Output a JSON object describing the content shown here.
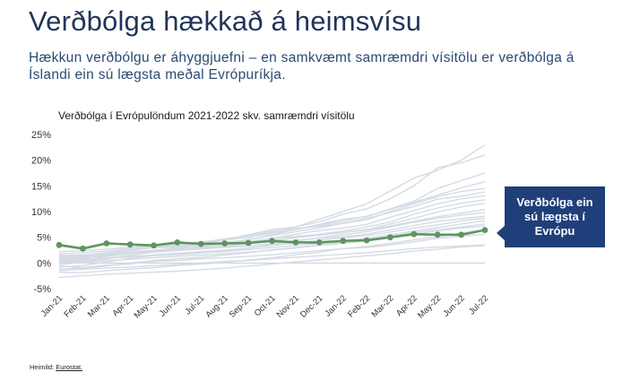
{
  "slide": {
    "title": "Verðbólga hækkað á heimsvísu",
    "subtitle": "Hækkun verðbólgu er áhyggjuefni – en samkvæmt samræmdri vísitölu er verðbólga á Íslandi ein sú lægsta meðal Evrópuríkja.",
    "callout": "Verðbólga ein sú lægsta í Evrópu",
    "source_label": "Heimild:",
    "source_value": "Eurostat."
  },
  "colors": {
    "highlight": "#5e9460",
    "background_series": "#d4dbe4",
    "zero_line": "#c8ccd2",
    "callout_bg": "#1f3f7a",
    "title": "#1f3559"
  },
  "chart_data": {
    "type": "line",
    "title": "Verðbólga í Evrópulöndum 2021-2022 skv. samræmdri vísitölu",
    "xlabel": "",
    "ylabel": "",
    "ylim": [
      -5,
      25
    ],
    "yticks": [
      -5,
      0,
      5,
      10,
      15,
      20,
      25
    ],
    "ytick_labels": [
      "-5%",
      "0%",
      "5%",
      "10%",
      "15%",
      "20%",
      "25%"
    ],
    "grid": false,
    "legend": "none",
    "categories": [
      "Jan-21",
      "Feb-21",
      "Mar-21",
      "Apr-21",
      "May-21",
      "Jun-21",
      "Jul-21",
      "Aug-21",
      "Sep-21",
      "Oct-21",
      "Nov-21",
      "Dec-21",
      "Jan-22",
      "Feb-22",
      "Mar-22",
      "Apr-22",
      "May-22",
      "Jun-22",
      "Jul-22"
    ],
    "highlight_series": [
      3.5,
      2.8,
      3.8,
      3.6,
      3.4,
      4.0,
      3.7,
      3.8,
      3.9,
      4.3,
      4.0,
      4.0,
      4.3,
      4.4,
      5.0,
      5.6,
      5.5,
      5.5,
      6.4
    ],
    "background_series": [
      [
        1.2,
        1.5,
        2.0,
        2.5,
        3.0,
        3.4,
        3.8,
        4.5,
        5.0,
        6.0,
        7.0,
        8.0,
        9.5,
        10.5,
        12.5,
        15.0,
        18.5,
        19.5,
        21.0
      ],
      [
        0.5,
        1.0,
        1.5,
        2.5,
        3.0,
        3.0,
        3.5,
        4.5,
        5.5,
        6.5,
        7.0,
        8.5,
        10.0,
        11.5,
        14.0,
        16.5,
        18.0,
        20.0,
        23.0
      ],
      [
        1.0,
        1.2,
        1.8,
        2.2,
        2.5,
        2.8,
        3.2,
        4.0,
        4.5,
        5.5,
        6.5,
        7.5,
        8.5,
        9.0,
        10.5,
        12.0,
        14.5,
        16.0,
        17.5
      ],
      [
        0.8,
        1.0,
        1.5,
        2.0,
        2.4,
        2.9,
        3.1,
        3.8,
        4.6,
        5.3,
        6.1,
        6.8,
        7.7,
        8.4,
        10.0,
        11.5,
        12.9,
        13.9,
        14.5
      ],
      [
        1.5,
        1.3,
        2.0,
        2.6,
        3.3,
        3.6,
        4.0,
        4.7,
        5.3,
        6.2,
        6.7,
        7.1,
        7.8,
        8.7,
        9.8,
        11.0,
        12.4,
        13.0,
        13.8
      ],
      [
        0.3,
        0.6,
        1.3,
        1.8,
        2.3,
        2.6,
        2.9,
        3.5,
        4.0,
        4.8,
        5.6,
        6.3,
        6.8,
        7.5,
        8.9,
        10.2,
        11.5,
        12.5,
        13.1
      ],
      [
        -0.4,
        0.2,
        0.8,
        1.5,
        2.1,
        2.4,
        2.8,
        3.2,
        3.9,
        4.4,
        5.0,
        5.6,
        6.2,
        7.0,
        8.0,
        9.5,
        10.7,
        11.6,
        12.3
      ],
      [
        0.9,
        1.1,
        1.4,
        1.9,
        2.2,
        2.5,
        2.7,
        3.1,
        3.7,
        4.2,
        4.9,
        5.4,
        5.9,
        6.5,
        7.6,
        8.7,
        9.9,
        10.9,
        11.6
      ],
      [
        1.8,
        2.0,
        2.3,
        2.8,
        3.1,
        3.2,
        3.6,
        3.9,
        4.2,
        4.8,
        5.2,
        5.5,
        6.0,
        6.4,
        7.2,
        8.1,
        9.0,
        9.7,
        10.4
      ],
      [
        0.1,
        0.4,
        0.9,
        1.2,
        1.6,
        1.9,
        2.2,
        2.5,
        2.9,
        3.6,
        4.2,
        4.9,
        5.5,
        6.1,
        7.0,
        7.9,
        8.7,
        9.3,
        9.8
      ],
      [
        1.4,
        1.6,
        1.7,
        2.1,
        2.4,
        2.6,
        2.8,
        3.0,
        3.3,
        3.8,
        4.4,
        4.8,
        5.1,
        5.6,
        6.4,
        7.3,
        8.1,
        8.6,
        9.1
      ],
      [
        -0.8,
        -0.5,
        0.2,
        0.9,
        1.4,
        1.6,
        1.9,
        2.4,
        2.9,
        3.4,
        3.9,
        4.4,
        4.9,
        5.3,
        6.0,
        6.8,
        7.4,
        8.2,
        8.7
      ],
      [
        0.6,
        0.8,
        1.0,
        1.3,
        1.5,
        1.7,
        2.0,
        2.2,
        2.6,
        3.0,
        3.4,
        3.8,
        4.3,
        4.8,
        5.5,
        6.2,
        6.9,
        7.6,
        8.2
      ],
      [
        -1.2,
        -1.0,
        -0.6,
        0.0,
        0.5,
        0.8,
        1.1,
        1.5,
        2.0,
        2.6,
        3.0,
        3.5,
        4.1,
        4.5,
        5.2,
        5.9,
        6.5,
        7.0,
        7.6
      ],
      [
        0.2,
        0.0,
        0.5,
        0.7,
        1.0,
        1.3,
        1.5,
        1.8,
        2.1,
        2.5,
        2.9,
        3.4,
        3.8,
        4.3,
        4.9,
        5.6,
        6.2,
        6.8,
        7.2
      ],
      [
        -1.8,
        -1.9,
        -1.5,
        -1.2,
        -0.9,
        -0.5,
        -0.2,
        0.1,
        0.6,
        1.0,
        1.6,
        2.1,
        2.8,
        3.2,
        3.8,
        4.5,
        5.1,
        5.8,
        6.5
      ],
      [
        -0.6,
        -0.9,
        -0.4,
        -0.2,
        0.3,
        0.5,
        0.8,
        1.0,
        1.3,
        1.6,
        2.0,
        2.4,
        2.8,
        3.0,
        3.5,
        4.1,
        4.8,
        5.2,
        5.6
      ],
      [
        -2.8,
        -2.5,
        -2.2,
        -2.0,
        -1.8,
        -1.6,
        -1.3,
        -1.0,
        -0.6,
        -0.2,
        0.2,
        0.6,
        1.0,
        1.4,
        1.8,
        2.3,
        2.7,
        3.1,
        3.4
      ],
      [
        -1.5,
        -1.2,
        -1.0,
        -0.8,
        -0.5,
        -0.3,
        0.0,
        0.3,
        0.5,
        0.8,
        1.1,
        1.4,
        1.7,
        2.0,
        2.4,
        2.8,
        3.1,
        3.3,
        3.5
      ],
      [
        2.2,
        2.4,
        2.7,
        3.0,
        3.4,
        3.8,
        4.1,
        4.5,
        5.0,
        5.8,
        6.5,
        7.3,
        8.2,
        9.1,
        10.4,
        11.8,
        13.2,
        14.6,
        15.8
      ]
    ]
  }
}
